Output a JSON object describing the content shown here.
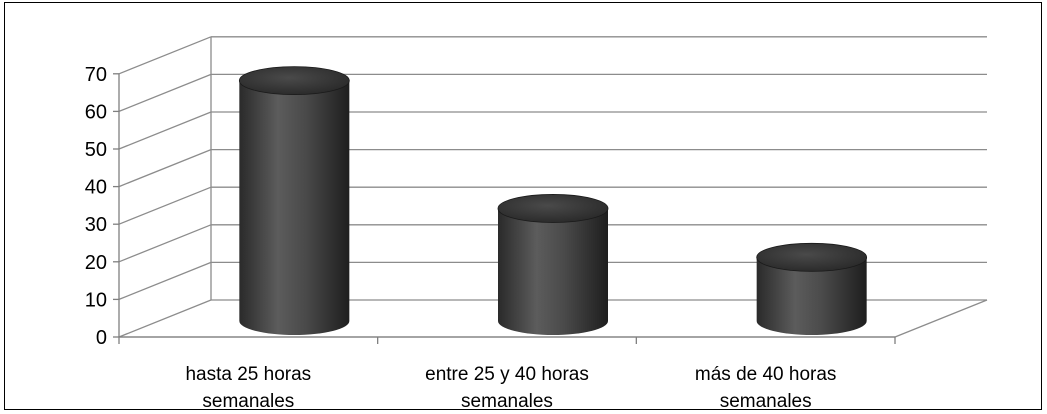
{
  "chart_data": {
    "type": "bar",
    "style": "3d-cylinder",
    "title": "",
    "xlabel": "",
    "ylabel": "",
    "ylim": [
      0,
      70
    ],
    "yticks": [
      0,
      10,
      20,
      30,
      40,
      50,
      60,
      70
    ],
    "grid": true,
    "categories": [
      [
        "hasta 25 horas",
        "semanales"
      ],
      [
        "entre 25 y 40 horas",
        "semanales"
      ],
      [
        "más de 40 horas",
        "semanales"
      ]
    ],
    "values": [
      65,
      31,
      18
    ],
    "bar_color": "#3f3f3f"
  }
}
